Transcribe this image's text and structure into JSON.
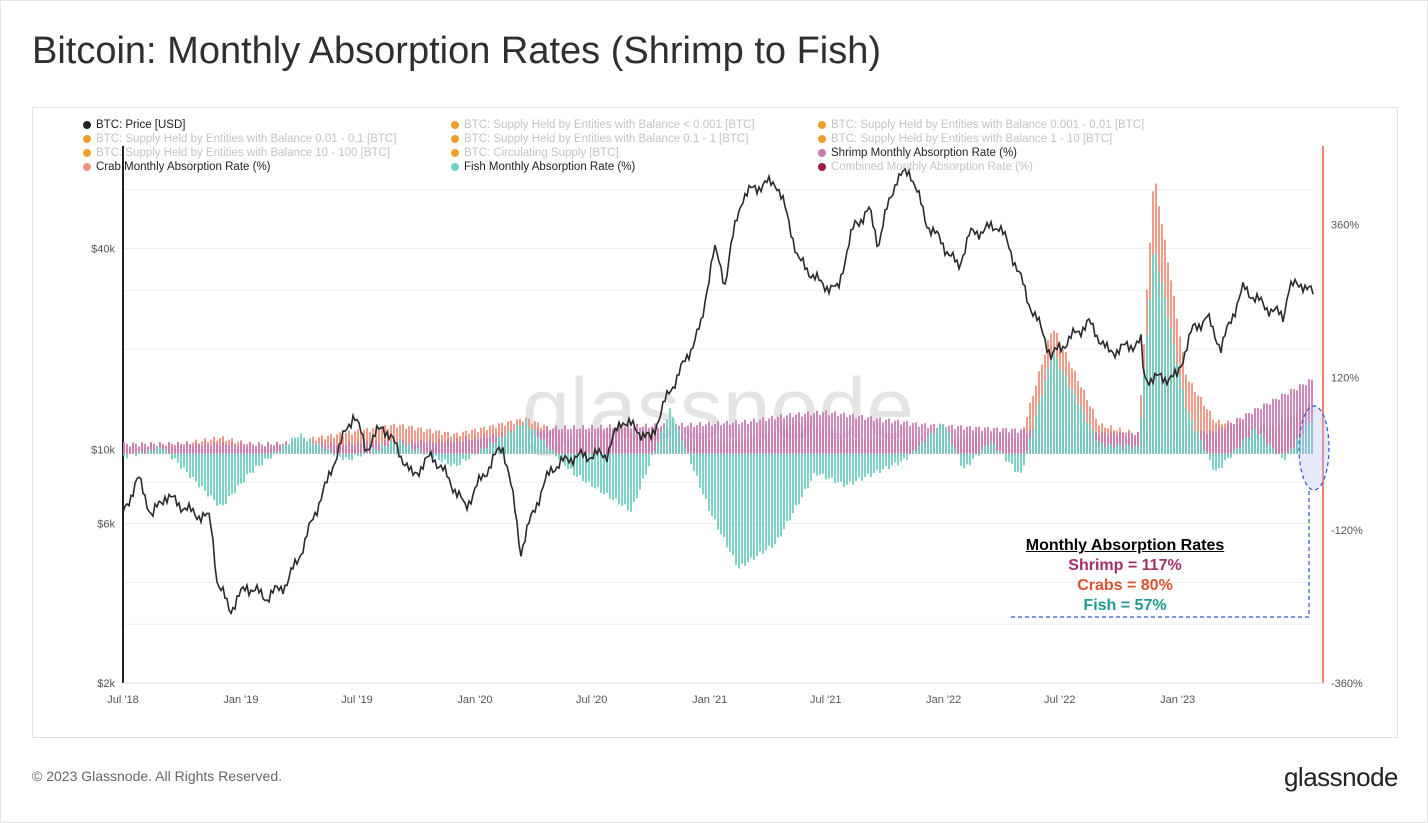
{
  "title": "Bitcoin: Monthly Absorption Rates (Shrimp to Fish)",
  "footer": {
    "copyright": "© 2023 Glassnode. All Rights Reserved.",
    "logo": "glassnode"
  },
  "watermark": "glassnode",
  "legend": [
    {
      "label": "BTC: Price [USD]",
      "color": "#222222",
      "active": true
    },
    {
      "label": "BTC: Supply Held by Entities with Balance < 0.001 [BTC]",
      "color": "#f39c2c",
      "active": false
    },
    {
      "label": "BTC: Supply Held by Entities with Balance 0.001 - 0.01 [BTC]",
      "color": "#f39c2c",
      "active": false
    },
    {
      "label": "BTC: Supply Held by Entities with Balance 0.01 - 0.1 [BTC]",
      "color": "#f39c2c",
      "active": false
    },
    {
      "label": "BTC: Supply Held by Entities with Balance 0.1 - 1 [BTC]",
      "color": "#f39c2c",
      "active": false
    },
    {
      "label": "BTC: Supply Held by Entities with Balance 1 - 10 [BTC]",
      "color": "#f39c2c",
      "active": false
    },
    {
      "label": "BTC: Supply Held by Entities with Balance 10 - 100 [BTC]",
      "color": "#f39c2c",
      "active": false
    },
    {
      "label": "BTC: Circulating Supply [BTC]",
      "color": "#f39c2c",
      "active": false
    },
    {
      "label": "Shrimp Monthly Absorption Rate (%)",
      "color": "#c97bb2",
      "active": true
    },
    {
      "label": "Crab Monthly Absorption Rate (%)",
      "color": "#f0907e",
      "active": true
    },
    {
      "label": "Fish Monthly Absorption Rate (%)",
      "color": "#6fd0c3",
      "active": true
    },
    {
      "label": "Combined Monthly Absorption Rate (%)",
      "color": "#9c1c4e",
      "active": false
    }
  ],
  "annotation": {
    "title": "Monthly Absorption Rates",
    "lines": [
      {
        "text": "Shrimp = 117%",
        "color": "#a0306b"
      },
      {
        "text": "Crabs = 80%",
        "color": "#d9532e"
      },
      {
        "text": "Fish = 57%",
        "color": "#1f9a92"
      }
    ]
  },
  "chart_data": {
    "type": "line+area",
    "x_ticks": [
      "Jul '18",
      "Jan '19",
      "Jul '19",
      "Jan '20",
      "Jul '20",
      "Jan '21",
      "Jul '21",
      "Jan '22",
      "Jul '22",
      "Jan '23"
    ],
    "y_left": {
      "scale": "log",
      "ticks": [
        "$2k",
        "$6k",
        "$10k",
        "$40k"
      ],
      "tick_values": [
        2000,
        6000,
        10000,
        40000
      ],
      "range": [
        2000,
        80000
      ]
    },
    "y_right": {
      "ticks": [
        "360%",
        "120%",
        "-120%",
        "-360%"
      ],
      "tick_values": [
        360,
        120,
        -120,
        -360
      ],
      "range": [
        -360,
        480
      ]
    },
    "x_range": [
      "2018-07-01",
      "2023-07-31"
    ],
    "price_usd": {
      "name": "BTC: Price [USD]",
      "points": [
        [
          "2018-07-01",
          6400
        ],
        [
          "2018-07-25",
          8200
        ],
        [
          "2018-08-15",
          6300
        ],
        [
          "2018-09-05",
          7300
        ],
        [
          "2018-10-15",
          6500
        ],
        [
          "2018-11-14",
          6200
        ],
        [
          "2018-11-25",
          4000
        ],
        [
          "2018-12-15",
          3300
        ],
        [
          "2019-01-10",
          3900
        ],
        [
          "2019-02-10",
          3600
        ],
        [
          "2019-03-15",
          4000
        ],
        [
          "2019-04-10",
          5200
        ],
        [
          "2019-05-15",
          7900
        ],
        [
          "2019-06-26",
          12800
        ],
        [
          "2019-07-15",
          10000
        ],
        [
          "2019-08-10",
          11800
        ],
        [
          "2019-09-25",
          8300
        ],
        [
          "2019-10-26",
          9600
        ],
        [
          "2019-12-17",
          6700
        ],
        [
          "2020-01-20",
          8700
        ],
        [
          "2020-02-13",
          10300
        ],
        [
          "2020-03-12",
          4900
        ],
        [
          "2020-04-30",
          8800
        ],
        [
          "2020-06-01",
          9500
        ],
        [
          "2020-07-25",
          9700
        ],
        [
          "2020-08-17",
          12300
        ],
        [
          "2020-10-01",
          10700
        ],
        [
          "2020-11-25",
          18500
        ],
        [
          "2020-12-20",
          23800
        ],
        [
          "2021-01-08",
          40000
        ],
        [
          "2021-01-25",
          31500
        ],
        [
          "2021-02-21",
          57000
        ],
        [
          "2021-03-13",
          61000
        ],
        [
          "2021-04-14",
          63500
        ],
        [
          "2021-05-19",
          37000
        ],
        [
          "2021-06-22",
          31500
        ],
        [
          "2021-07-20",
          30000
        ],
        [
          "2021-08-15",
          47000
        ],
        [
          "2021-09-07",
          52000
        ],
        [
          "2021-09-21",
          41000
        ],
        [
          "2021-10-20",
          65000
        ],
        [
          "2021-11-10",
          68000
        ],
        [
          "2021-12-04",
          48000
        ],
        [
          "2022-01-24",
          35000
        ],
        [
          "2022-02-10",
          44000
        ],
        [
          "2022-03-28",
          47000
        ],
        [
          "2022-05-12",
          28000
        ],
        [
          "2022-06-18",
          19000
        ],
        [
          "2022-08-15",
          24000
        ],
        [
          "2022-09-15",
          19500
        ],
        [
          "2022-11-05",
          21000
        ],
        [
          "2022-11-09",
          16300
        ],
        [
          "2022-12-31",
          16500
        ],
        [
          "2023-01-25",
          23000
        ],
        [
          "2023-02-16",
          24800
        ],
        [
          "2023-03-10",
          20000
        ],
        [
          "2023-04-14",
          30500
        ],
        [
          "2023-05-15",
          27000
        ],
        [
          "2023-06-15",
          25000
        ],
        [
          "2023-06-23",
          30500
        ],
        [
          "2023-07-14",
          31500
        ],
        [
          "2023-07-31",
          29200
        ]
      ]
    },
    "series": [
      {
        "name": "Shrimp Monthly Absorption Rate (%)",
        "color": "#c97bb2",
        "points": [
          [
            "2018-07-01",
            15
          ],
          [
            "2019-06-01",
            15
          ],
          [
            "2019-12-01",
            20
          ],
          [
            "2020-05-01",
            40
          ],
          [
            "2020-12-01",
            45
          ],
          [
            "2021-03-01",
            50
          ],
          [
            "2021-05-01",
            60
          ],
          [
            "2021-07-01",
            65
          ],
          [
            "2021-12-01",
            45
          ],
          [
            "2022-03-01",
            40
          ],
          [
            "2022-06-01",
            35
          ],
          [
            "2022-12-01",
            30
          ],
          [
            "2023-03-01",
            35
          ],
          [
            "2023-07-31",
            117
          ]
        ]
      },
      {
        "name": "Crab Monthly Absorption Rate (%)",
        "color": "#f0907e",
        "points": [
          [
            "2018-07-01",
            10
          ],
          [
            "2018-10-01",
            15
          ],
          [
            "2018-12-01",
            25
          ],
          [
            "2019-02-01",
            10
          ],
          [
            "2019-06-01",
            30
          ],
          [
            "2019-09-01",
            45
          ],
          [
            "2019-12-01",
            30
          ],
          [
            "2020-03-20",
            55
          ],
          [
            "2020-06-01",
            25
          ],
          [
            "2020-08-01",
            40
          ],
          [
            "2020-11-01",
            30
          ],
          [
            "2021-02-01",
            15
          ],
          [
            "2021-05-25",
            50
          ],
          [
            "2021-08-01",
            20
          ],
          [
            "2021-10-01",
            25
          ],
          [
            "2022-01-01",
            20
          ],
          [
            "2022-03-01",
            30
          ],
          [
            "2022-05-01",
            25
          ],
          [
            "2022-06-20",
            200
          ],
          [
            "2022-09-01",
            45
          ],
          [
            "2022-11-01",
            30
          ],
          [
            "2022-11-25",
            440
          ],
          [
            "2023-01-15",
            120
          ],
          [
            "2023-03-01",
            50
          ],
          [
            "2023-04-20",
            45
          ],
          [
            "2023-06-01",
            40
          ],
          [
            "2023-07-31",
            80
          ]
        ]
      },
      {
        "name": "Fish Monthly Absorption Rate (%)",
        "color": "#6fd0c3",
        "points": [
          [
            "2018-07-01",
            -5
          ],
          [
            "2018-09-01",
            10
          ],
          [
            "2018-12-01",
            -85
          ],
          [
            "2019-01-15",
            -30
          ],
          [
            "2019-04-01",
            30
          ],
          [
            "2019-06-15",
            -10
          ],
          [
            "2019-09-01",
            20
          ],
          [
            "2019-12-01",
            -20
          ],
          [
            "2020-03-20",
            50
          ],
          [
            "2020-06-01",
            -30
          ],
          [
            "2020-09-01",
            -90
          ],
          [
            "2020-11-01",
            70
          ],
          [
            "2021-01-01",
            -90
          ],
          [
            "2021-02-15",
            -180
          ],
          [
            "2021-04-15",
            -140
          ],
          [
            "2021-06-15",
            -30
          ],
          [
            "2021-08-01",
            -50
          ],
          [
            "2021-11-01",
            -10
          ],
          [
            "2022-01-01",
            50
          ],
          [
            "2022-02-01",
            -25
          ],
          [
            "2022-03-15",
            20
          ],
          [
            "2022-05-01",
            -35
          ],
          [
            "2022-06-20",
            160
          ],
          [
            "2022-09-01",
            15
          ],
          [
            "2022-11-01",
            10
          ],
          [
            "2022-11-25",
            330
          ],
          [
            "2023-01-15",
            70
          ],
          [
            "2023-03-01",
            -30
          ],
          [
            "2023-05-01",
            40
          ],
          [
            "2023-06-15",
            -10
          ],
          [
            "2023-07-31",
            57
          ]
        ]
      }
    ]
  }
}
